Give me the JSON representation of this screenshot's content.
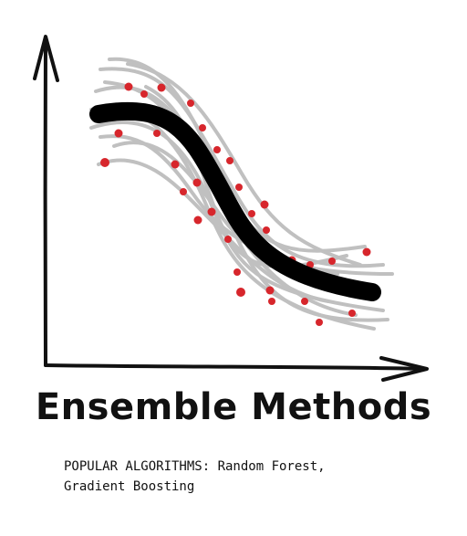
{
  "title": "Ensemble Methods",
  "subtitle_line1": "POPULAR ALGORITHMS: Random Forest,",
  "subtitle_line2": "Gradient Boosting",
  "colors": {
    "background": "#ffffff",
    "axis": "#111111",
    "main_curve": "#000000",
    "ensemble_curves": "#bdbdbd",
    "points": "#d7262c"
  }
}
